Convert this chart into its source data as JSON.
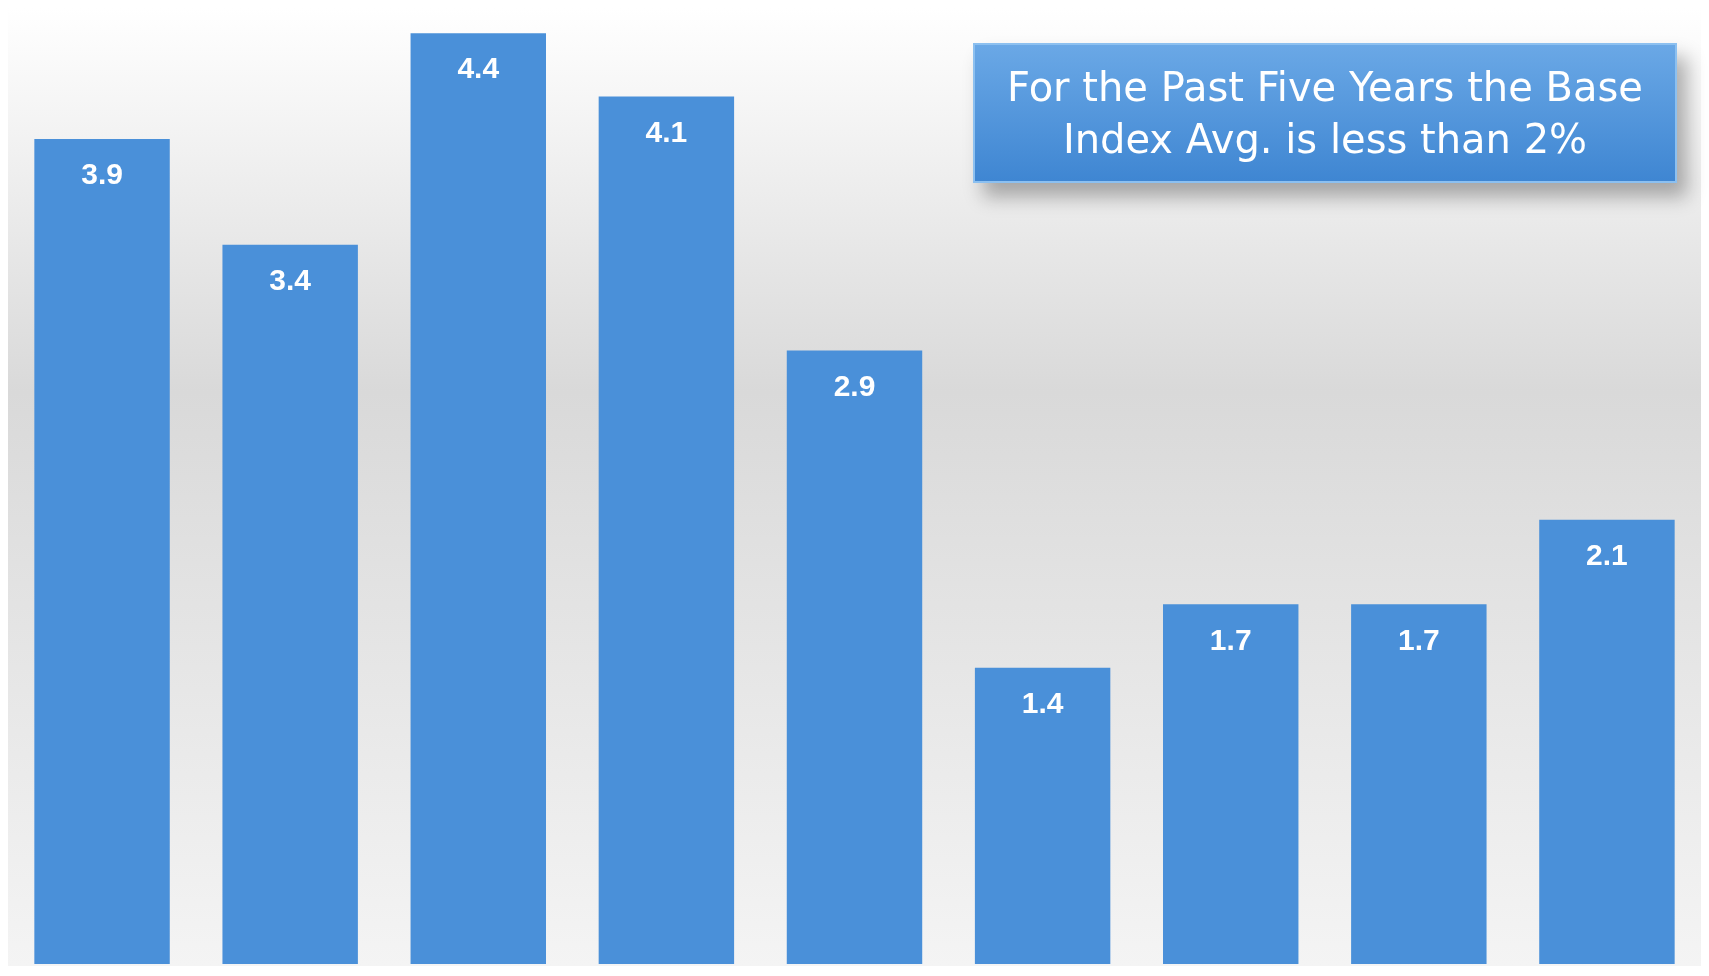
{
  "chart_data": {
    "type": "bar",
    "categories": [
      null,
      null,
      null,
      null,
      null,
      null,
      null,
      null,
      null
    ],
    "values": [
      3.9,
      3.4,
      4.4,
      4.1,
      2.9,
      1.4,
      1.7,
      1.7,
      2.1
    ],
    "color": "#4a90d9",
    "data_labels": true,
    "legend": false,
    "annotations": [
      "For the Past Five Years the Base Index Avg. is less than 2%"
    ]
  }
}
